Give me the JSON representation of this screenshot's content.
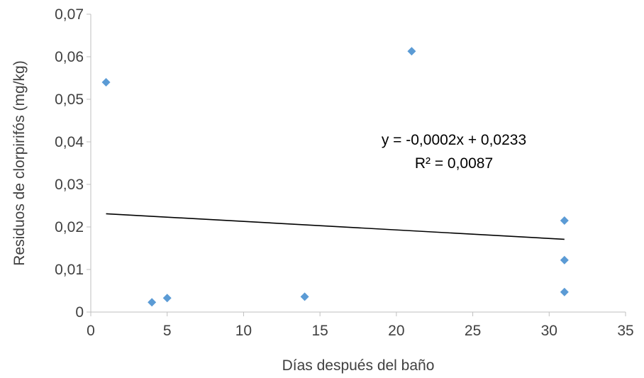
{
  "chart_data": {
    "type": "scatter",
    "title": "",
    "xlabel": "Días después del baño",
    "ylabel": "Residuos de clorpirifós (mg/kg)",
    "xlim": [
      0,
      35
    ],
    "ylim": [
      0,
      0.07
    ],
    "xticks": [
      "0",
      "5",
      "10",
      "15",
      "20",
      "25",
      "30",
      "35"
    ],
    "yticks": [
      "0",
      "0,01",
      "0,02",
      "0,03",
      "0,04",
      "0,05",
      "0,06",
      "0,07"
    ],
    "grid": false,
    "legend": false,
    "marker": "diamond",
    "marker_color": "#5B9BD5",
    "series": [
      {
        "points": [
          {
            "x": 1,
            "y": 0.054
          },
          {
            "x": 4,
            "y": 0.0023
          },
          {
            "x": 5,
            "y": 0.0033
          },
          {
            "x": 14,
            "y": 0.0036
          },
          {
            "x": 21,
            "y": 0.0613
          },
          {
            "x": 31,
            "y": 0.0215
          },
          {
            "x": 31,
            "y": 0.0122
          },
          {
            "x": 31,
            "y": 0.0047
          }
        ]
      }
    ],
    "trendline": {
      "type": "linear",
      "slope": -0.0002,
      "intercept": 0.0233,
      "x_range": [
        1,
        31
      ],
      "color": "#000000",
      "equation": "y = -0,0002x + 0,0233",
      "r2": "R² = 0,0087"
    }
  }
}
